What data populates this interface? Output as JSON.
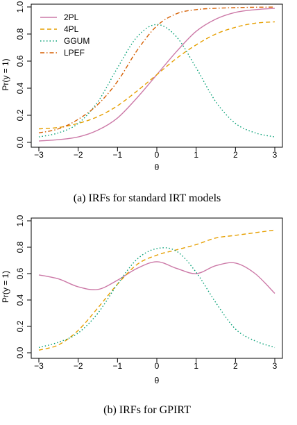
{
  "captions": [
    "(a) IRFs for standard IRT models",
    "(b) IRFs for GPIRT"
  ],
  "chart_data": [
    {
      "type": "line",
      "title": "",
      "caption": "(a) IRFs for standard IRT models",
      "xlabel": "θ",
      "ylabel": "Pr(y = 1)",
      "xlim": [
        -3,
        3
      ],
      "ylim": [
        0,
        1
      ],
      "xticks": [
        "−3",
        "−2",
        "−1",
        "0",
        "1",
        "2",
        "3"
      ],
      "yticks": [
        "0.0",
        "0.2",
        "0.4",
        "0.6",
        "0.8",
        "1.0"
      ],
      "grid": false,
      "legend": "top-left",
      "x": [
        -3,
        -2.5,
        -2,
        -1.5,
        -1,
        -0.5,
        0,
        0.5,
        1,
        1.5,
        2,
        2.5,
        3
      ],
      "series": [
        {
          "name": "2PL",
          "color": "#cc79a7",
          "dash": "solid",
          "values": [
            0.01,
            0.02,
            0.04,
            0.09,
            0.18,
            0.33,
            0.5,
            0.67,
            0.82,
            0.91,
            0.96,
            0.98,
            0.99
          ]
        },
        {
          "name": "4PL",
          "color": "#e69f00",
          "dash": "dashed",
          "values": [
            0.1,
            0.11,
            0.14,
            0.19,
            0.27,
            0.38,
            0.5,
            0.62,
            0.72,
            0.8,
            0.85,
            0.88,
            0.89
          ]
        },
        {
          "name": "GGUM",
          "color": "#009e73",
          "dash": "dotted",
          "values": [
            0.04,
            0.07,
            0.14,
            0.3,
            0.55,
            0.78,
            0.87,
            0.78,
            0.55,
            0.3,
            0.14,
            0.07,
            0.04
          ]
        },
        {
          "name": "LPEF",
          "color": "#d55e00",
          "dash": "dotdash",
          "values": [
            0.07,
            0.1,
            0.17,
            0.28,
            0.45,
            0.68,
            0.86,
            0.95,
            0.98,
            0.99,
            0.995,
            0.998,
            0.999
          ]
        }
      ]
    },
    {
      "type": "line",
      "title": "",
      "caption": "(b) IRFs for GPIRT",
      "xlabel": "θ",
      "ylabel": "Pr(y = 1)",
      "xlim": [
        -3,
        3
      ],
      "ylim": [
        0,
        1
      ],
      "xticks": [
        "−3",
        "−2",
        "−1",
        "0",
        "1",
        "2",
        "3"
      ],
      "yticks": [
        "0.0",
        "0.2",
        "0.4",
        "0.6",
        "0.8",
        "1.0"
      ],
      "grid": false,
      "legend": "none",
      "x": [
        -3,
        -2.5,
        -2,
        -1.5,
        -1,
        -0.5,
        0,
        0.5,
        1,
        1.5,
        2,
        2.5,
        3
      ],
      "series": [
        {
          "color": "#cc79a7",
          "dash": "solid",
          "values": [
            0.59,
            0.56,
            0.5,
            0.48,
            0.55,
            0.64,
            0.69,
            0.64,
            0.6,
            0.66,
            0.68,
            0.6,
            0.45
          ]
        },
        {
          "color": "#e69f00",
          "dash": "dashed",
          "values": [
            0.02,
            0.06,
            0.17,
            0.34,
            0.52,
            0.67,
            0.74,
            0.78,
            0.82,
            0.87,
            0.89,
            0.91,
            0.93
          ]
        },
        {
          "color": "#009e73",
          "dash": "dotted",
          "values": [
            0.04,
            0.08,
            0.15,
            0.3,
            0.52,
            0.71,
            0.79,
            0.77,
            0.61,
            0.38,
            0.18,
            0.09,
            0.04
          ]
        }
      ]
    }
  ]
}
